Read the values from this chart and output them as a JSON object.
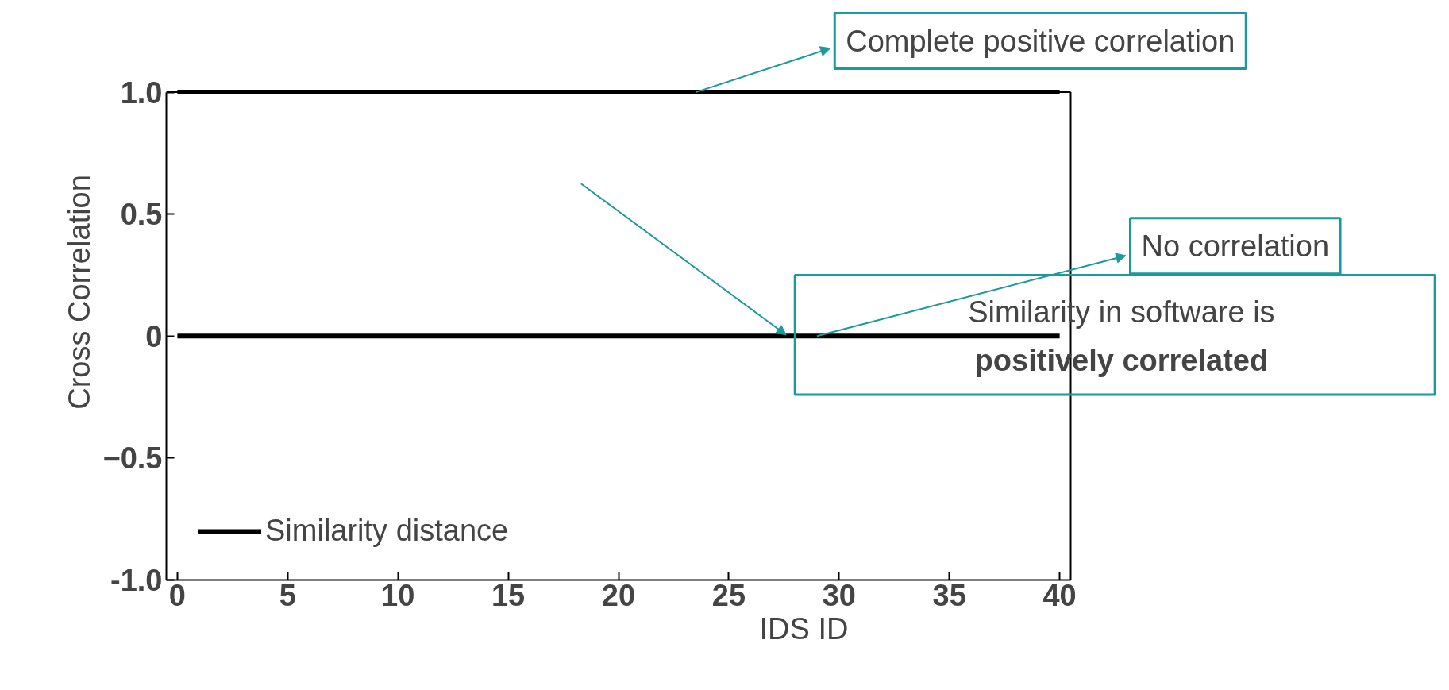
{
  "chart_data": {
    "type": "line",
    "xlabel": "IDS ID",
    "ylabel": "Cross Correlation",
    "x": [
      0,
      40
    ],
    "series": [
      {
        "name": "Similarity distance",
        "color": "#000000",
        "values": [
          1.0,
          1.0
        ]
      },
      {
        "color": "#000000",
        "values": [
          0,
          0
        ]
      }
    ],
    "xlim": [
      -0.5,
      40.5
    ],
    "ylim": [
      -1.0,
      1.0
    ],
    "xticks": [
      0,
      5,
      10,
      15,
      20,
      25,
      30,
      35,
      40
    ],
    "yticks": [
      {
        "value": -1.0,
        "label": "-1.0"
      },
      -0.5,
      0,
      0.5,
      {
        "value": 1.0,
        "label": "1.0"
      }
    ],
    "grid": false,
    "legend": "bottom left",
    "marker": "none",
    "line_style": "solid",
    "annotations": [
      {
        "text": "Complete positive correlation",
        "x": 23.5,
        "y": 1.0
      },
      "Similarity in software is\npositively correlated",
      {
        "text": "No correlation",
        "x": 29,
        "y": 0
      }
    ]
  }
}
